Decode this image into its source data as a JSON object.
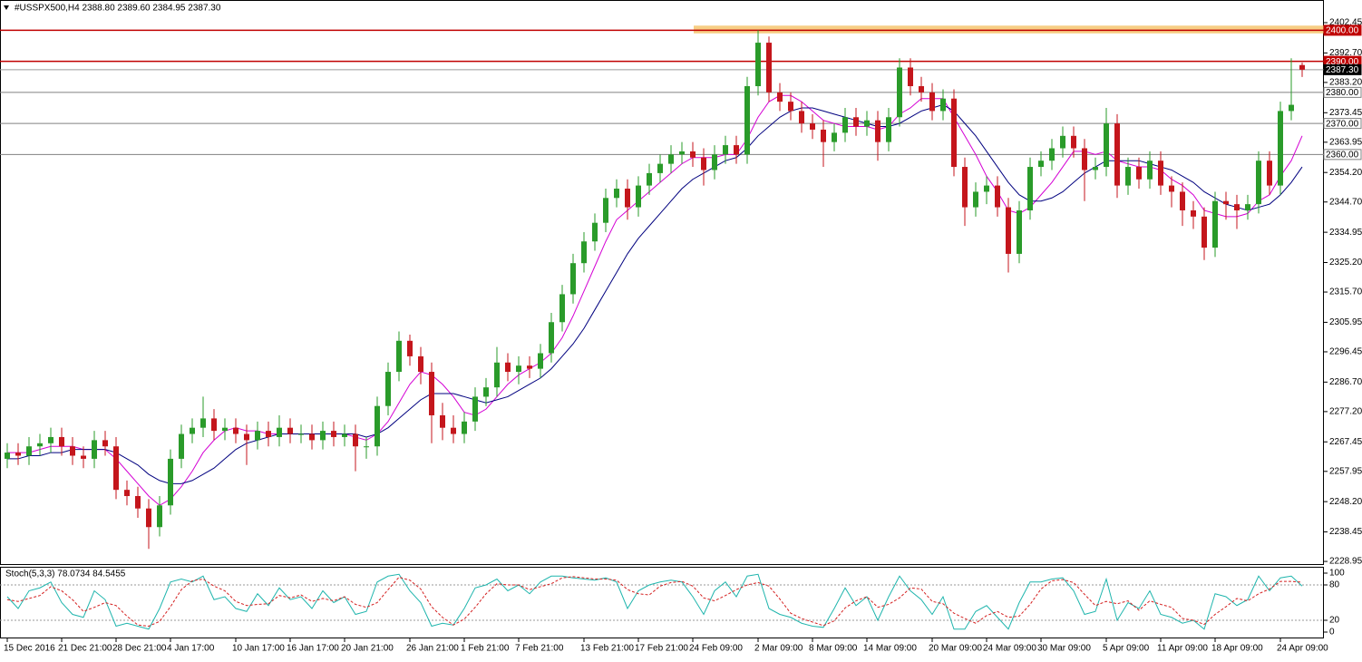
{
  "chart_data": {
    "type": "candlestick",
    "title": "#USSPX500,H4  2388.80 2389.60 2384.95 2387.30",
    "up_color": "#2a9b2a",
    "down_color": "#c4161c",
    "ylim": [
      2228.1,
      2409.75
    ],
    "yticks": [
      2402.45,
      {
        "value": 2392.7,
        "label": "2392.70"
      },
      {
        "value": 2383.2,
        "label": "2383.20"
      },
      2373.45,
      2363.95,
      {
        "value": 2354.2,
        "label": "2354.20"
      },
      {
        "value": 2344.7,
        "label": "2344.70"
      },
      2334.95,
      {
        "value": 2325.2,
        "label": "2325.20"
      },
      {
        "value": 2315.7,
        "label": "2315.70"
      },
      2305.95,
      2296.45,
      {
        "value": 2286.7,
        "label": "2286.70"
      },
      {
        "value": 2277.2,
        "label": "2277.20"
      },
      2267.45,
      2257.95,
      {
        "value": 2248.2,
        "label": "2248.20"
      },
      2238.45,
      2228.95
    ],
    "levels": [
      {
        "value": 2400,
        "label": "2400.00",
        "color": "#c00000"
      },
      {
        "value": 2390,
        "label": "2390.00",
        "color": "#c00000"
      },
      {
        "value": 2387.3,
        "label": "2387.30",
        "color": "#000000"
      },
      {
        "value": 2380,
        "label": "2380.00",
        "color": "#808080"
      },
      {
        "value": 2370,
        "label": "2370.00",
        "color": "#808080"
      },
      {
        "value": 2360,
        "label": "2360.00",
        "color": "#808080"
      }
    ],
    "zone": {
      "from": 2399,
      "to": 2401.5,
      "color": "#f6c570"
    },
    "categories": [
      "15 Dec 2016",
      null,
      null,
      null,
      null,
      "21 Dec 21:00",
      null,
      null,
      null,
      null,
      "28 Dec 21:00",
      null,
      null,
      null,
      null,
      "4 Jan 17:00",
      null,
      null,
      null,
      null,
      null,
      "10 Jan 17:00",
      null,
      null,
      null,
      null,
      "16 Jan 17:00",
      null,
      null,
      null,
      null,
      "20 Jan 21:00",
      null,
      null,
      null,
      null,
      null,
      "26 Jan 21:00",
      null,
      null,
      null,
      null,
      "1 Feb 21:00",
      null,
      null,
      null,
      null,
      "7 Feb 21:00",
      null,
      null,
      null,
      null,
      null,
      "13 Feb 21:00",
      null,
      null,
      null,
      null,
      "17 Feb 21:00",
      null,
      null,
      null,
      null,
      "24 Feb 09:00",
      null,
      null,
      null,
      null,
      null,
      "2 Mar 09:00",
      null,
      null,
      null,
      null,
      "8 Mar 09:00",
      null,
      null,
      null,
      null,
      "14 Mar 09:00",
      null,
      null,
      null,
      null,
      null,
      "20 Mar 09:00",
      null,
      null,
      null,
      null,
      "24 Mar 09:00",
      null,
      null,
      null,
      null,
      "30 Mar 09:00",
      null,
      null,
      null,
      null,
      null,
      "5 Apr 09:00",
      null,
      null,
      null,
      null,
      "11 Apr 09:00",
      null,
      null,
      null,
      null,
      "18 Apr 09:00",
      null,
      null,
      null,
      null,
      null,
      "24 Apr 09:00",
      null,
      null
    ],
    "open": [
      2262,
      2264,
      2263,
      2266,
      2267,
      2269,
      2266,
      2263,
      2262,
      2268,
      2266,
      2252,
      2250,
      2246,
      2240,
      2247,
      2262,
      2270,
      2272,
      2275,
      2271,
      2272,
      2270,
      2268,
      2271,
      2269,
      2272,
      2270,
      2270,
      2268,
      2271,
      2269,
      2270,
      2266,
      2266,
      2279,
      2290,
      2300,
      2295,
      2290,
      2276,
      2272,
      2270,
      2274,
      2282,
      2285,
      2293,
      2290,
      2292,
      2291,
      2296,
      2306,
      2315,
      2325,
      2332,
      2338,
      2346,
      2349,
      2343,
      2350,
      2354,
      2357,
      2360,
      2361,
      2359,
      2355,
      2360,
      2363,
      2360,
      2382,
      2396,
      2380,
      2377,
      2374,
      2370,
      2368,
      2364,
      2367,
      2372,
      2369,
      2371,
      2364,
      2372,
      2388,
      2382,
      2380,
      2374,
      2378,
      2356,
      2343,
      2348,
      2350,
      2343,
      2328,
      2342,
      2356,
      2358,
      2362,
      2366,
      2362,
      2355,
      2356,
      2370,
      2350,
      2356,
      2352,
      2358,
      2350,
      2348,
      2342,
      2340,
      2330,
      2345,
      2344,
      2342,
      2344,
      2358,
      2350,
      2374,
      2388.8
    ],
    "high": [
      2267,
      2267,
      2269,
      2270,
      2272,
      2272,
      2269,
      2266,
      2271,
      2271,
      2269,
      2255,
      2253,
      2249,
      2250,
      2265,
      2273,
      2275,
      2282,
      2278,
      2275,
      2275,
      2273,
      2274,
      2274,
      2276,
      2275,
      2273,
      2273,
      2274,
      2274,
      2273,
      2273,
      2269,
      2282,
      2293,
      2303,
      2302,
      2298,
      2293,
      2280,
      2276,
      2277,
      2285,
      2288,
      2298,
      2296,
      2295,
      2295,
      2299,
      2309,
      2318,
      2328,
      2335,
      2341,
      2349,
      2352,
      2352,
      2353,
      2357,
      2360,
      2363,
      2364,
      2364,
      2362,
      2363,
      2366,
      2366,
      2385,
      2400,
      2398,
      2383,
      2380,
      2377,
      2373,
      2371,
      2370,
      2375,
      2375,
      2374,
      2374,
      2375,
      2391,
      2391,
      2385,
      2383,
      2381,
      2381,
      2359,
      2351,
      2353,
      2353,
      2346,
      2345,
      2359,
      2361,
      2365,
      2369,
      2369,
      2365,
      2359,
      2375,
      2373,
      2359,
      2359,
      2361,
      2361,
      2353,
      2351,
      2345,
      2343,
      2348,
      2348,
      2347,
      2347,
      2361,
      2361,
      2377,
      2391,
      2389.6
    ],
    "low": [
      2259,
      2260,
      2260,
      2263,
      2264,
      2263,
      2260,
      2259,
      2259,
      2263,
      2249,
      2247,
      2243,
      2233,
      2237,
      2244,
      2259,
      2267,
      2269,
      2268,
      2268,
      2267,
      2260,
      2265,
      2266,
      2266,
      2267,
      2267,
      2265,
      2265,
      2266,
      2266,
      2258,
      2262,
      2263,
      2276,
      2287,
      2292,
      2286,
      2267,
      2268,
      2267,
      2267,
      2271,
      2279,
      2282,
      2287,
      2286,
      2288,
      2288,
      2293,
      2303,
      2312,
      2322,
      2329,
      2335,
      2343,
      2339,
      2340,
      2347,
      2351,
      2354,
      2357,
      2356,
      2350,
      2352,
      2357,
      2357,
      2357,
      2379,
      2377,
      2374,
      2371,
      2367,
      2365,
      2356,
      2361,
      2364,
      2366,
      2366,
      2358,
      2361,
      2369,
      2379,
      2377,
      2371,
      2371,
      2353,
      2337,
      2340,
      2344,
      2340,
      2322,
      2325,
      2339,
      2353,
      2355,
      2359,
      2359,
      2345,
      2352,
      2353,
      2346,
      2347,
      2349,
      2349,
      2347,
      2343,
      2337,
      2336,
      2326,
      2327,
      2339,
      2336,
      2339,
      2341,
      2347,
      2347,
      2371,
      2384.95
    ],
    "close": [
      2264,
      2263,
      2266,
      2267,
      2269,
      2266,
      2263,
      2262,
      2268,
      2266,
      2252,
      2250,
      2246,
      2240,
      2247,
      2262,
      2270,
      2272,
      2275,
      2271,
      2272,
      2270,
      2268,
      2271,
      2269,
      2272,
      2270,
      2270,
      2268,
      2271,
      2269,
      2270,
      2266,
      2266,
      2279,
      2290,
      2300,
      2295,
      2290,
      2276,
      2272,
      2270,
      2274,
      2282,
      2285,
      2293,
      2290,
      2292,
      2291,
      2296,
      2306,
      2315,
      2325,
      2332,
      2338,
      2346,
      2349,
      2343,
      2350,
      2354,
      2357,
      2360,
      2361,
      2359,
      2355,
      2360,
      2363,
      2360,
      2382,
      2396,
      2380,
      2377,
      2374,
      2370,
      2368,
      2364,
      2367,
      2372,
      2369,
      2371,
      2364,
      2372,
      2388,
      2382,
      2380,
      2374,
      2378,
      2356,
      2343,
      2348,
      2350,
      2343,
      2328,
      2342,
      2356,
      2358,
      2362,
      2366,
      2362,
      2355,
      2356,
      2370,
      2350,
      2356,
      2352,
      2358,
      2350,
      2348,
      2342,
      2340,
      2330,
      2345,
      2344,
      2342,
      2344,
      2358,
      2350,
      2374,
      2376,
      2387.3
    ],
    "series": [
      {
        "color": "#d400d4",
        "values": [
          2264,
          2264,
          2264,
          2265,
          2266,
          2266,
          2266,
          2265,
          2265,
          2265,
          2262,
          2258,
          2254,
          2250,
          2247,
          2249,
          2253,
          2258,
          2264,
          2268,
          2271,
          2272,
          2271,
          2271,
          2270,
          2270,
          2270,
          2270,
          2270,
          2270,
          2270,
          2270,
          2269,
          2268,
          2270,
          2274,
          2280,
          2286,
          2290,
          2289,
          2286,
          2282,
          2277,
          2276,
          2278,
          2282,
          2286,
          2289,
          2291,
          2293,
          2296,
          2301,
          2308,
          2316,
          2324,
          2332,
          2339,
          2342,
          2345,
          2348,
          2351,
          2354,
          2357,
          2359,
          2359,
          2359,
          2360,
          2360,
          2365,
          2372,
          2377,
          2379,
          2379,
          2377,
          2374,
          2371,
          2370,
          2369,
          2369,
          2369,
          2368,
          2369,
          2373,
          2375,
          2378,
          2378,
          2378,
          2372,
          2366,
          2360,
          2353,
          2348,
          2342,
          2341,
          2343,
          2347,
          2351,
          2356,
          2361,
          2361,
          2360,
          2361,
          2358,
          2357,
          2356,
          2356,
          2355,
          2352,
          2350,
          2347,
          2342,
          2341,
          2340,
          2340,
          2341,
          2345,
          2347,
          2353,
          2358,
          2366
        ]
      },
      {
        "color": "#00007f",
        "values": [
          2262,
          2262,
          2263,
          2263,
          2264,
          2264,
          2265,
          2265,
          2265,
          2265,
          2264,
          2262,
          2260,
          2257,
          2255,
          2254,
          2254,
          2255,
          2257,
          2259,
          2262,
          2265,
          2267,
          2268,
          2269,
          2270,
          2270,
          2270,
          2270,
          2270,
          2270,
          2270,
          2270,
          2269,
          2270,
          2272,
          2275,
          2278,
          2281,
          2283,
          2283,
          2283,
          2282,
          2281,
          2280,
          2281,
          2282,
          2284,
          2286,
          2288,
          2291,
          2295,
          2299,
          2304,
          2310,
          2316,
          2322,
          2328,
          2333,
          2337,
          2341,
          2345,
          2349,
          2352,
          2354,
          2356,
          2358,
          2359,
          2362,
          2366,
          2369,
          2372,
          2374,
          2375,
          2375,
          2374,
          2373,
          2372,
          2371,
          2370,
          2369,
          2369,
          2370,
          2372,
          2374,
          2375,
          2376,
          2374,
          2370,
          2366,
          2361,
          2356,
          2351,
          2347,
          2345,
          2345,
          2346,
          2348,
          2351,
          2354,
          2356,
          2358,
          2358,
          2358,
          2358,
          2357,
          2356,
          2355,
          2353,
          2351,
          2348,
          2346,
          2344,
          2343,
          2342,
          2343,
          2344,
          2347,
          2351,
          2356
        ]
      }
    ],
    "stoch": {
      "type": "line",
      "title": "Stoch(5,3,3) 78.0734 84.5455",
      "ylim": [
        0,
        100
      ],
      "yticks": [
        0,
        20,
        80,
        100
      ],
      "levels": [
        80,
        20
      ],
      "series": [
        {
          "color": "#1fb5ad",
          "values": [
            60,
            40,
            70,
            75,
            85,
            50,
            30,
            25,
            70,
            55,
            10,
            15,
            10,
            5,
            40,
            85,
            90,
            85,
            95,
            55,
            60,
            40,
            35,
            65,
            45,
            75,
            55,
            60,
            40,
            70,
            50,
            60,
            30,
            35,
            85,
            95,
            98,
            70,
            50,
            10,
            15,
            12,
            40,
            75,
            80,
            90,
            70,
            80,
            65,
            85,
            95,
            95,
            92,
            90,
            88,
            92,
            85,
            40,
            70,
            80,
            85,
            88,
            85,
            60,
            30,
            70,
            85,
            60,
            95,
            98,
            40,
            30,
            25,
            15,
            10,
            8,
            40,
            75,
            45,
            60,
            20,
            60,
            95,
            70,
            55,
            30,
            60,
            5,
            5,
            35,
            45,
            25,
            5,
            50,
            85,
            85,
            90,
            92,
            70,
            30,
            35,
            90,
            20,
            50,
            40,
            70,
            30,
            25,
            15,
            20,
            5,
            65,
            60,
            45,
            55,
            95,
            70,
            92,
            95,
            78.0734
          ]
        },
        {
          "color": "#d42020",
          "values": [
            55,
            52,
            57,
            62,
            77,
            70,
            55,
            35,
            42,
            50,
            45,
            27,
            12,
            10,
            18,
            43,
            72,
            87,
            90,
            78,
            70,
            52,
            45,
            47,
            48,
            62,
            58,
            63,
            52,
            57,
            53,
            60,
            47,
            42,
            50,
            72,
            93,
            88,
            73,
            43,
            25,
            12,
            22,
            42,
            65,
            82,
            80,
            80,
            72,
            77,
            82,
            92,
            94,
            92,
            90,
            90,
            88,
            72,
            65,
            63,
            78,
            84,
            86,
            78,
            58,
            53,
            62,
            72,
            80,
            84,
            78,
            56,
            32,
            23,
            17,
            11,
            19,
            41,
            53,
            60,
            42,
            47,
            58,
            75,
            73,
            52,
            48,
            32,
            23,
            15,
            28,
            35,
            25,
            27,
            47,
            73,
            87,
            89,
            84,
            64,
            45,
            52,
            48,
            53,
            37,
            53,
            47,
            42,
            23,
            20,
            13,
            30,
            43,
            57,
            53,
            65,
            73,
            86,
            86,
            84.5455
          ]
        }
      ]
    }
  }
}
